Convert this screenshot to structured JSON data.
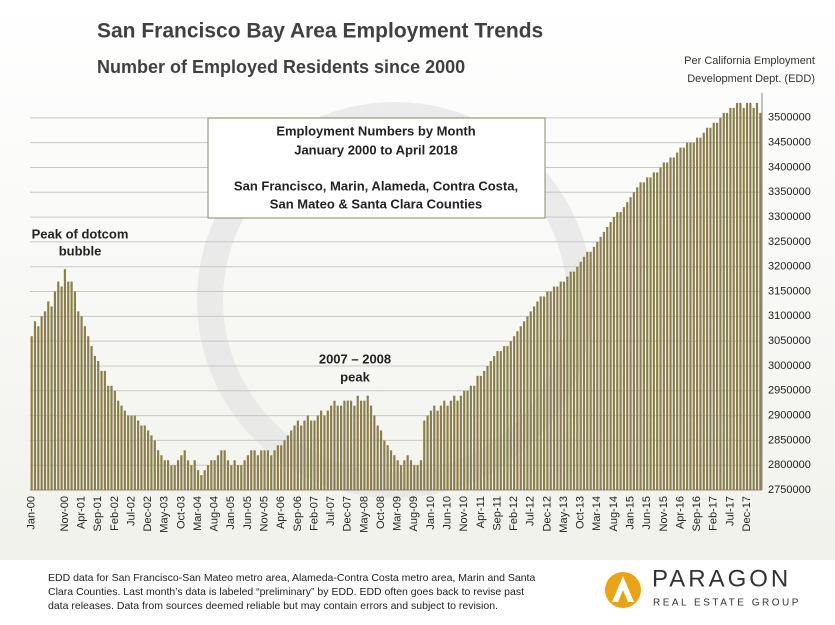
{
  "chart_data": {
    "type": "bar",
    "title": "San Francisco Bay Area Employment Trends",
    "subtitle": "Number of Employed  Residents since 2000",
    "source": [
      "Per California Employment",
      "Development Dept. (EDD)"
    ],
    "color": "#8a7f4c",
    "grid": true,
    "ylim": [
      2750000,
      3550000
    ],
    "yticks": [
      2750000,
      2800000,
      2850000,
      2900000,
      2950000,
      3000000,
      3050000,
      3100000,
      3150000,
      3200000,
      3250000,
      3300000,
      3350000,
      3400000,
      3450000,
      3500000
    ],
    "categories": [
      "Jan-00",
      null,
      null,
      null,
      null,
      null,
      null,
      null,
      null,
      null,
      "Nov-00",
      null,
      null,
      null,
      null,
      "Apr-01",
      null,
      null,
      null,
      null,
      "Sep-01",
      null,
      null,
      null,
      null,
      "Feb-02",
      null,
      null,
      null,
      null,
      "Jul-02",
      null,
      null,
      null,
      null,
      "Dec-02",
      null,
      null,
      null,
      null,
      "May-03",
      null,
      null,
      null,
      null,
      "Oct-03",
      null,
      null,
      null,
      null,
      "Mar-04",
      null,
      null,
      null,
      null,
      "Aug-04",
      null,
      null,
      null,
      null,
      "Jan-05",
      null,
      null,
      null,
      null,
      "Jun-05",
      null,
      null,
      null,
      null,
      "Nov-05",
      null,
      null,
      null,
      null,
      "Apr-06",
      null,
      null,
      null,
      null,
      "Sep-06",
      null,
      null,
      null,
      null,
      "Feb-07",
      null,
      null,
      null,
      null,
      "Jul-07",
      null,
      null,
      null,
      null,
      "Dec-07",
      null,
      null,
      null,
      null,
      "May-08",
      null,
      null,
      null,
      null,
      "Oct-08",
      null,
      null,
      null,
      null,
      "Mar-09",
      null,
      null,
      null,
      null,
      "Aug-09",
      null,
      null,
      null,
      null,
      "Jan-10",
      null,
      null,
      null,
      null,
      "Jun-10",
      null,
      null,
      null,
      null,
      "Nov-10",
      null,
      null,
      null,
      null,
      "Apr-11",
      null,
      null,
      null,
      null,
      "Sep-11",
      null,
      null,
      null,
      null,
      "Feb-12",
      null,
      null,
      null,
      null,
      "Jul-12",
      null,
      null,
      null,
      null,
      "Dec-12",
      null,
      null,
      null,
      null,
      "May-13",
      null,
      null,
      null,
      null,
      "Oct-13",
      null,
      null,
      null,
      null,
      "Mar-14",
      null,
      null,
      null,
      null,
      "Aug-14",
      null,
      null,
      null,
      null,
      "Jan-15",
      null,
      null,
      null,
      null,
      "Jun-15",
      null,
      null,
      null,
      null,
      "Nov-15",
      null,
      null,
      null,
      null,
      "Apr-16",
      null,
      null,
      null,
      null,
      "Sep-16",
      null,
      null,
      null,
      null,
      "Feb-17",
      null,
      null,
      null,
      null,
      "Jul-17",
      null,
      null,
      null,
      null,
      "Dec-17",
      null,
      null,
      null,
      null
    ],
    "values": [
      3060000,
      3090000,
      3080000,
      3100000,
      3110000,
      3130000,
      3120000,
      3150000,
      3170000,
      3160000,
      3195000,
      3170000,
      3170000,
      3150000,
      3110000,
      3100000,
      3080000,
      3060000,
      3040000,
      3020000,
      3010000,
      2990000,
      2990000,
      2960000,
      2960000,
      2950000,
      2930000,
      2920000,
      2910000,
      2900000,
      2900000,
      2900000,
      2890000,
      2880000,
      2880000,
      2870000,
      2860000,
      2850000,
      2830000,
      2820000,
      2810000,
      2810000,
      2800000,
      2800000,
      2810000,
      2820000,
      2830000,
      2810000,
      2800000,
      2810000,
      2790000,
      2780000,
      2790000,
      2800000,
      2810000,
      2810000,
      2820000,
      2830000,
      2830000,
      2810000,
      2800000,
      2810000,
      2800000,
      2800000,
      2810000,
      2820000,
      2830000,
      2830000,
      2820000,
      2830000,
      2830000,
      2830000,
      2820000,
      2830000,
      2840000,
      2840000,
      2850000,
      2860000,
      2870000,
      2880000,
      2890000,
      2880000,
      2890000,
      2900000,
      2890000,
      2890000,
      2900000,
      2910000,
      2900000,
      2910000,
      2920000,
      2930000,
      2920000,
      2920000,
      2930000,
      2930000,
      2930000,
      2920000,
      2940000,
      2930000,
      2930000,
      2940000,
      2920000,
      2900000,
      2880000,
      2870000,
      2850000,
      2840000,
      2830000,
      2820000,
      2810000,
      2800000,
      2810000,
      2820000,
      2810000,
      2800000,
      2800000,
      2810000,
      2890000,
      2900000,
      2910000,
      2920000,
      2910000,
      2920000,
      2930000,
      2920000,
      2930000,
      2940000,
      2930000,
      2940000,
      2950000,
      2950000,
      2960000,
      2960000,
      2980000,
      2980000,
      2990000,
      3000000,
      3010000,
      3020000,
      3030000,
      3030000,
      3040000,
      3040000,
      3050000,
      3060000,
      3070000,
      3080000,
      3090000,
      3100000,
      3110000,
      3120000,
      3130000,
      3140000,
      3140000,
      3150000,
      3150000,
      3160000,
      3160000,
      3170000,
      3170000,
      3180000,
      3190000,
      3190000,
      3200000,
      3210000,
      3220000,
      3230000,
      3230000,
      3240000,
      3250000,
      3260000,
      3270000,
      3280000,
      3290000,
      3300000,
      3310000,
      3310000,
      3320000,
      3330000,
      3340000,
      3350000,
      3360000,
      3370000,
      3370000,
      3380000,
      3380000,
      3390000,
      3390000,
      3400000,
      3410000,
      3410000,
      3420000,
      3420000,
      3430000,
      3440000,
      3440000,
      3450000,
      3450000,
      3450000,
      3460000,
      3460000,
      3470000,
      3480000,
      3480000,
      3490000,
      3490000,
      3500000,
      3510000,
      3510000,
      3520000,
      3520000,
      3530000,
      3530000,
      3520000,
      3530000,
      3530000,
      3520000,
      3530000,
      3510000
    ],
    "box": [
      "Employment Numbers by Month",
      "January 2000 to April 2018",
      "San Francisco, Marin, Alameda, Contra Costa,",
      "San Mateo & Santa Clara Counties"
    ],
    "annotations": [
      [
        "Peak of dotcom",
        "bubble"
      ],
      [
        "2007 – 2008",
        "peak"
      ]
    ]
  },
  "footer": [
    "EDD data for San Francisco-San Mateo metro area, Alameda-Contra Costa metro area, Marin and Santa",
    "Clara Counties. Last month’s data is labeled “preliminary” by EDD. EDD often goes back to revise past",
    "data releases. Data from sources deemed reliable but may contain errors and subject to revision."
  ],
  "logo": {
    "name": "PARAGON",
    "tagline": "REAL ESTATE GROUP"
  }
}
